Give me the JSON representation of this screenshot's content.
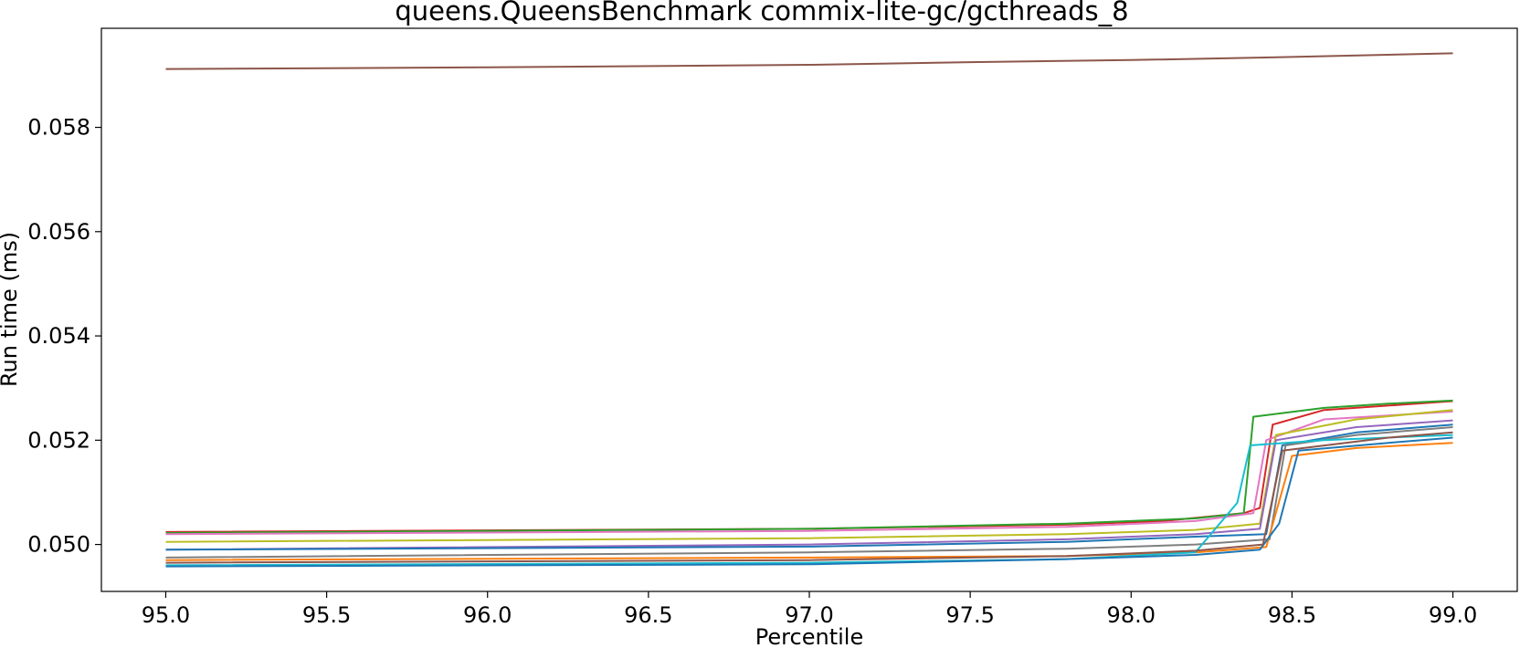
{
  "chart_data": {
    "type": "line",
    "title": "queens.QueensBenchmark commix-lite-gc/gcthreads_8",
    "xlabel": "Percentile",
    "ylabel": "Run time (ms)",
    "xlim": [
      94.8,
      99.2
    ],
    "ylim": [
      0.0491,
      0.0599
    ],
    "xticks": [
      95.0,
      95.5,
      96.0,
      96.5,
      97.0,
      97.5,
      98.0,
      98.5,
      99.0
    ],
    "xtick_labels": [
      "95.0",
      "95.5",
      "96.0",
      "96.5",
      "97.0",
      "97.5",
      "98.0",
      "98.5",
      "99.0"
    ],
    "yticks": [
      0.05,
      0.052,
      0.054,
      0.056,
      0.058
    ],
    "ytick_labels": [
      "0.050",
      "0.052",
      "0.054",
      "0.056",
      "0.058"
    ],
    "grid": false,
    "legend": "none",
    "series": [
      {
        "color": "#8c564b",
        "values": [
          [
            95.0,
            0.05912
          ],
          [
            96.0,
            0.05915
          ],
          [
            97.0,
            0.0592
          ],
          [
            97.5,
            0.05925
          ],
          [
            98.0,
            0.05929
          ],
          [
            98.5,
            0.05935
          ],
          [
            99.0,
            0.05942
          ]
        ]
      },
      {
        "color": "#d62728",
        "values": [
          [
            95.0,
            0.05024
          ],
          [
            97.0,
            0.0503
          ],
          [
            97.8,
            0.05038
          ],
          [
            98.1,
            0.05045
          ],
          [
            98.35,
            0.0506
          ],
          [
            98.4,
            0.0507
          ],
          [
            98.44,
            0.0523
          ],
          [
            98.6,
            0.05258
          ],
          [
            99.0,
            0.05275
          ]
        ]
      },
      {
        "color": "#2ca02c",
        "values": [
          [
            95.0,
            0.05022
          ],
          [
            97.0,
            0.0503
          ],
          [
            97.8,
            0.0504
          ],
          [
            98.2,
            0.0505
          ],
          [
            98.35,
            0.0506
          ],
          [
            98.38,
            0.05245
          ],
          [
            98.6,
            0.05262
          ],
          [
            98.8,
            0.0527
          ],
          [
            99.0,
            0.05276
          ]
        ]
      },
      {
        "color": "#e377c2",
        "values": [
          [
            95.0,
            0.0502
          ],
          [
            97.0,
            0.05026
          ],
          [
            97.8,
            0.05034
          ],
          [
            98.2,
            0.05045
          ],
          [
            98.38,
            0.0506
          ],
          [
            98.42,
            0.052
          ],
          [
            98.6,
            0.0524
          ],
          [
            99.0,
            0.05255
          ]
        ]
      },
      {
        "color": "#bcbd22",
        "values": [
          [
            95.0,
            0.05005
          ],
          [
            97.0,
            0.05012
          ],
          [
            97.8,
            0.0502
          ],
          [
            98.2,
            0.05028
          ],
          [
            98.4,
            0.0504
          ],
          [
            98.45,
            0.0521
          ],
          [
            98.7,
            0.0524
          ],
          [
            99.0,
            0.05258
          ]
        ]
      },
      {
        "color": "#9467bd",
        "values": [
          [
            95.0,
            0.0499
          ],
          [
            97.0,
            0.05
          ],
          [
            97.8,
            0.0501
          ],
          [
            98.2,
            0.0502
          ],
          [
            98.4,
            0.0503
          ],
          [
            98.45,
            0.052
          ],
          [
            98.7,
            0.05225
          ],
          [
            99.0,
            0.05238
          ]
        ]
      },
      {
        "color": "#1f77b4",
        "values": [
          [
            95.0,
            0.0499
          ],
          [
            97.0,
            0.04996
          ],
          [
            97.8,
            0.05005
          ],
          [
            98.2,
            0.05015
          ],
          [
            98.42,
            0.0502
          ],
          [
            98.47,
            0.0519
          ],
          [
            98.7,
            0.05215
          ],
          [
            99.0,
            0.0523
          ]
        ]
      },
      {
        "color": "#7f7f7f",
        "values": [
          [
            95.0,
            0.04975
          ],
          [
            97.0,
            0.04985
          ],
          [
            97.8,
            0.04992
          ],
          [
            98.2,
            0.05
          ],
          [
            98.43,
            0.0501
          ],
          [
            98.48,
            0.0519
          ],
          [
            98.7,
            0.0521
          ],
          [
            99.0,
            0.05225
          ]
        ]
      },
      {
        "color": "#ff7f0e",
        "values": [
          [
            95.0,
            0.0497
          ],
          [
            97.0,
            0.04975
          ],
          [
            97.8,
            0.04978
          ],
          [
            98.2,
            0.04985
          ],
          [
            98.42,
            0.04995
          ],
          [
            98.5,
            0.0517
          ],
          [
            98.7,
            0.05185
          ],
          [
            99.0,
            0.05195
          ]
        ]
      },
      {
        "color": "#17becf",
        "values": [
          [
            95.0,
            0.0496
          ],
          [
            97.0,
            0.04965
          ],
          [
            97.8,
            0.04972
          ],
          [
            98.2,
            0.04985
          ],
          [
            98.33,
            0.0508
          ],
          [
            98.37,
            0.0519
          ],
          [
            98.6,
            0.052
          ],
          [
            99.0,
            0.0521
          ]
        ]
      },
      {
        "color": "#1f77b4",
        "values": [
          [
            95.0,
            0.04958
          ],
          [
            97.0,
            0.04962
          ],
          [
            97.8,
            0.04972
          ],
          [
            98.2,
            0.0498
          ],
          [
            98.4,
            0.0499
          ],
          [
            98.46,
            0.0504
          ],
          [
            98.52,
            0.0518
          ],
          [
            98.8,
            0.05195
          ],
          [
            99.0,
            0.05205
          ]
        ]
      },
      {
        "color": "#8c564b",
        "values": [
          [
            95.0,
            0.04965
          ],
          [
            97.0,
            0.0497
          ],
          [
            97.8,
            0.04978
          ],
          [
            98.2,
            0.04988
          ],
          [
            98.41,
            0.05
          ],
          [
            98.47,
            0.0518
          ],
          [
            98.8,
            0.05205
          ],
          [
            99.0,
            0.05215
          ]
        ]
      }
    ]
  }
}
